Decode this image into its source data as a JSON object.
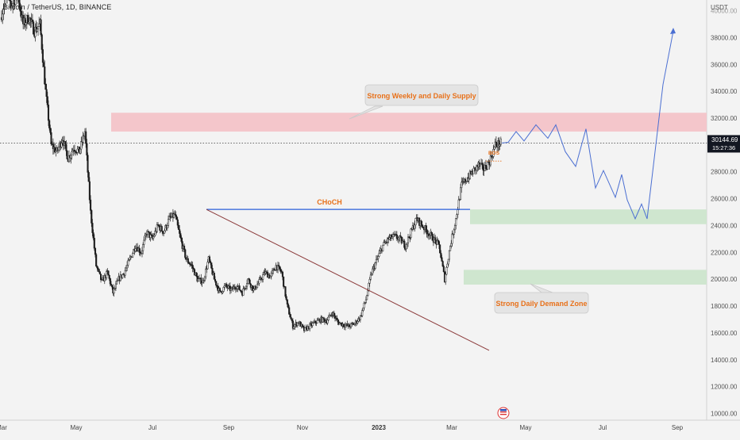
{
  "header": {
    "title": "Bitcoin / TetherUS, 1D, BINANCE"
  },
  "price_axis": {
    "currency": "USDT",
    "ticks": [
      "10000.00",
      "12000.00",
      "14000.00",
      "16000.00",
      "18000.00",
      "20000.00",
      "22000.00",
      "24000.00",
      "26000.00",
      "28000.00",
      "32000.00",
      "34000.00",
      "36000.00",
      "38000.00"
    ],
    "partial_top_tick": "40000.00",
    "last_price": "30144.69",
    "countdown": "15:27:36"
  },
  "time_axis": {
    "ticks": [
      "Mar",
      "May",
      "Jul",
      "Sep",
      "Nov",
      "2023",
      "Mar",
      "May",
      "Jul",
      "Sep"
    ]
  },
  "annotations": {
    "supply_label": "Strong Weekly and Daily Supply",
    "demand_label": "Strong Daily Demand Zone",
    "choch_label": "CHoCH",
    "bos_label": "BOS"
  },
  "colors": {
    "background": "#f3f3f3",
    "supply_zone": "#f4c6cb",
    "demand_zone": "#cfe6cf",
    "projection": "#4b6fd2",
    "choch_line": "#2b5fd9",
    "trendline": "#8b3a3a",
    "label_orange": "#e8711a",
    "price_tag": "#131722"
  },
  "chart_data": {
    "type": "line",
    "x": [
      "2022-03",
      "2022-05",
      "2022-07",
      "2022-09",
      "2022-11",
      "2023-01",
      "2023-03",
      "2023-05",
      "2023-07",
      "2023-09"
    ],
    "y_axis": {
      "unit": "USDT",
      "ylim": [
        9500,
        40800
      ]
    },
    "current_price": 30144.69,
    "supply_zone": {
      "low": 31000,
      "high": 32400,
      "from": "2022-05",
      "to": "2023-09"
    },
    "demand_zones": [
      {
        "low": 24100,
        "high": 25200,
        "from": "2023-03",
        "to": "2023-09"
      },
      {
        "low": 19600,
        "high": 20700,
        "from": "2023-03",
        "to": "2023-09"
      }
    ],
    "choch_level": {
      "price": 25200,
      "from": "2022-08",
      "to": "2023-03"
    },
    "trendline": [
      [
        "2022-08",
        25200
      ],
      [
        "2023-04",
        14700
      ]
    ],
    "price_history": [
      [
        "2022-03",
        39500
      ],
      [
        "2022-03",
        41000
      ],
      [
        "2022-04",
        40500
      ],
      [
        "2022-04",
        41200
      ],
      [
        "2022-04",
        39000
      ],
      [
        "2022-04",
        39500
      ],
      [
        "2022-04",
        38500
      ],
      [
        "2022-05",
        39000
      ],
      [
        "2022-05",
        34000
      ],
      [
        "2022-05",
        30000
      ],
      [
        "2022-05",
        29500
      ],
      [
        "2022-05",
        30500
      ],
      [
        "2022-05",
        29000
      ],
      [
        "2022-05",
        29800
      ],
      [
        "2022-06",
        29500
      ],
      [
        "2022-06",
        31000
      ],
      [
        "2022-06",
        25000
      ],
      [
        "2022-06",
        21000
      ],
      [
        "2022-06",
        19800
      ],
      [
        "2022-06",
        20500
      ],
      [
        "2022-06",
        19000
      ],
      [
        "2022-07",
        20000
      ],
      [
        "2022-07",
        20500
      ],
      [
        "2022-07",
        21500
      ],
      [
        "2022-07",
        22500
      ],
      [
        "2022-07",
        22000
      ],
      [
        "2022-07",
        23500
      ],
      [
        "2022-07",
        23000
      ],
      [
        "2022-08",
        24000
      ],
      [
        "2022-08",
        23500
      ],
      [
        "2022-08",
        24500
      ],
      [
        "2022-08",
        24800
      ],
      [
        "2022-08",
        23000
      ],
      [
        "2022-08",
        21500
      ],
      [
        "2022-08",
        21000
      ],
      [
        "2022-09",
        20000
      ],
      [
        "2022-09",
        19800
      ],
      [
        "2022-09",
        21500
      ],
      [
        "2022-09",
        20000
      ],
      [
        "2022-09",
        19000
      ],
      [
        "2022-09",
        19500
      ],
      [
        "2022-09",
        19200
      ],
      [
        "2022-10",
        19500
      ],
      [
        "2022-10",
        19000
      ],
      [
        "2022-10",
        20000
      ],
      [
        "2022-10",
        19200
      ],
      [
        "2022-10",
        19800
      ],
      [
        "2022-10",
        20500
      ],
      [
        "2022-10",
        20200
      ],
      [
        "2022-11",
        21000
      ],
      [
        "2022-11",
        20500
      ],
      [
        "2022-11",
        18000
      ],
      [
        "2022-11",
        16500
      ],
      [
        "2022-11",
        16800
      ],
      [
        "2022-11",
        16200
      ],
      [
        "2022-11",
        16500
      ],
      [
        "2022-12",
        16800
      ],
      [
        "2022-12",
        17000
      ],
      [
        "2022-12",
        16900
      ],
      [
        "2022-12",
        17500
      ],
      [
        "2022-12",
        16800
      ],
      [
        "2022-12",
        16600
      ],
      [
        "2022-12",
        16500
      ],
      [
        "2023-01",
        16700
      ],
      [
        "2023-01",
        17200
      ],
      [
        "2023-01",
        18500
      ],
      [
        "2023-01",
        20500
      ],
      [
        "2023-01",
        21500
      ],
      [
        "2023-01",
        22500
      ],
      [
        "2023-01",
        23000
      ],
      [
        "2023-02",
        23200
      ],
      [
        "2023-02",
        23000
      ],
      [
        "2023-02",
        22500
      ],
      [
        "2023-02",
        23500
      ],
      [
        "2023-02",
        24500
      ],
      [
        "2023-02",
        24000
      ],
      [
        "2023-02",
        23500
      ],
      [
        "2023-03",
        23000
      ],
      [
        "2023-03",
        22500
      ],
      [
        "2023-03",
        20000
      ],
      [
        "2023-03",
        22500
      ],
      [
        "2023-03",
        24500
      ],
      [
        "2023-03",
        27000
      ],
      [
        "2023-03",
        27500
      ],
      [
        "2023-04",
        28000
      ],
      [
        "2023-04",
        28500
      ],
      [
        "2023-04",
        28200
      ],
      [
        "2023-04",
        28800
      ],
      [
        "2023-04",
        30000
      ],
      [
        "2023-04",
        30144.69
      ]
    ],
    "projection": [
      [
        "2023-04",
        30144.69
      ],
      [
        "2023-04",
        30200
      ],
      [
        "2023-04",
        31000
      ],
      [
        "2023-04",
        30300
      ],
      [
        "2023-04",
        31500
      ],
      [
        "2023-05",
        30500
      ],
      [
        "2023-05",
        31500
      ],
      [
        "2023-05",
        29500
      ],
      [
        "2023-05",
        28400
      ],
      [
        "2023-05",
        31200
      ],
      [
        "2023-06",
        26800
      ],
      [
        "2023-06",
        28100
      ],
      [
        "2023-06",
        26100
      ],
      [
        "2023-06",
        27800
      ],
      [
        "2023-06",
        25900
      ],
      [
        "2023-07",
        24500
      ],
      [
        "2023-07",
        25600
      ],
      [
        "2023-07",
        24500
      ],
      [
        "2023-08",
        29500
      ],
      [
        "2023-08",
        34500
      ],
      [
        "2023-08",
        38500
      ]
    ]
  }
}
